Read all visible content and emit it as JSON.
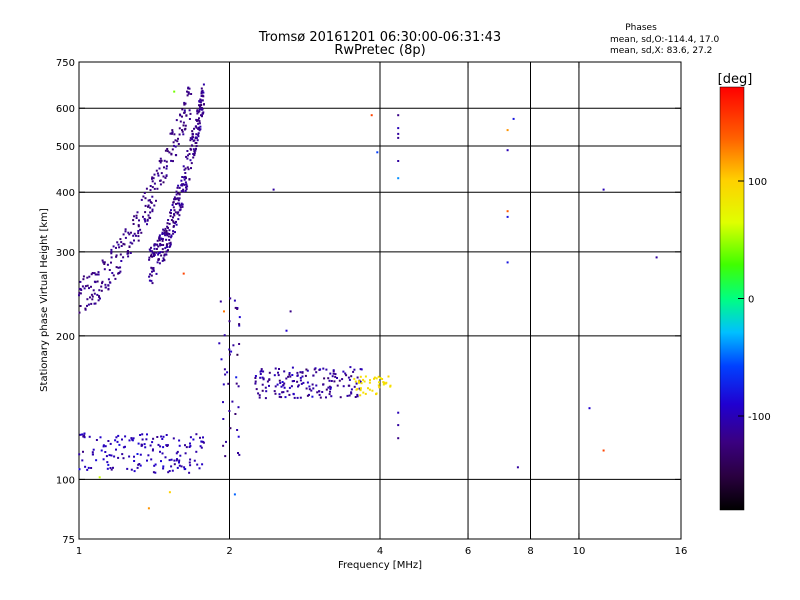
{
  "chart_data": {
    "type": "scatter",
    "title": "Tromsø 20161201 06:30:00-06:31:43",
    "subtitle": "RwPretec (8p)",
    "stats": {
      "heading": "Phases",
      "line1": "mean, sd,O:-114.4, 17.0",
      "line2": "mean, sd,X:  83.6, 27.2"
    },
    "xlabel": "Frequency [MHz]",
    "ylabel": "Stationary phase Virtual Height [km]",
    "x_scale": "log",
    "y_scale": "log",
    "xlim": [
      1,
      16
    ],
    "ylim": [
      75,
      750
    ],
    "x_ticks": [
      1,
      2,
      4,
      6,
      8,
      10,
      16
    ],
    "x_tick_labels": [
      "1",
      "2",
      "4",
      "6",
      "8",
      "10",
      "16"
    ],
    "y_ticks": [
      75,
      100,
      200,
      300,
      400,
      500,
      600,
      750
    ],
    "y_tick_labels": [
      "75",
      "100",
      "200",
      "300",
      "400",
      "500",
      "600",
      "750"
    ],
    "grid_x": [
      2,
      4,
      6,
      8,
      10
    ],
    "grid_y": [
      100,
      200,
      300,
      400,
      500,
      600
    ],
    "colorbar": {
      "label": "[deg]",
      "range": [
        -180,
        180
      ],
      "ticks": [
        100,
        0,
        -100
      ],
      "tick_labels": [
        "100",
        "0",
        "-100"
      ]
    },
    "clusters": [
      {
        "name": "E-layer O trace",
        "x_range": [
          1.0,
          1.78
        ],
        "y_range": [
          103,
          125
        ],
        "count": 160,
        "phase_mean": -100,
        "phase_sd": 12
      },
      {
        "name": "F-layer O trace low",
        "x_range": [
          1.0,
          1.68
        ],
        "y_range": [
          245,
          640
        ],
        "count": 260,
        "phase_mean": -120,
        "phase_sd": 8,
        "kind": "curve"
      },
      {
        "name": "F-layer O trace upper",
        "x_range": [
          1.38,
          1.78
        ],
        "y_range": [
          280,
          650
        ],
        "count": 300,
        "phase_mean": -118,
        "phase_sd": 10,
        "kind": "curve"
      },
      {
        "name": "Es trace",
        "x_range": [
          2.25,
          3.7
        ],
        "y_range": [
          148,
          172
        ],
        "count": 170,
        "phase_mean": -110,
        "phase_sd": 14
      },
      {
        "name": "Es yellow",
        "x_range": [
          3.55,
          4.2
        ],
        "y_range": [
          150,
          165
        ],
        "count": 40,
        "phase_mean": 90,
        "phase_sd": 8
      },
      {
        "name": "scatter near 2 MHz",
        "x_range": [
          1.9,
          2.1
        ],
        "y_range": [
          110,
          240
        ],
        "count": 40,
        "phase_mean": -105,
        "phase_sd": 25
      }
    ],
    "points": [
      [
        3.85,
        580,
        150
      ],
      [
        4.35,
        580,
        -120
      ],
      [
        4.35,
        545,
        -100
      ],
      [
        4.35,
        530,
        -110
      ],
      [
        4.35,
        520,
        -115
      ],
      [
        3.95,
        485,
        -60
      ],
      [
        4.35,
        465,
        -110
      ],
      [
        4.35,
        428,
        -40
      ],
      [
        7.4,
        570,
        -80
      ],
      [
        7.2,
        540,
        120
      ],
      [
        7.2,
        490,
        -100
      ],
      [
        7.2,
        365,
        140
      ],
      [
        7.2,
        355,
        -80
      ],
      [
        7.2,
        285,
        -80
      ],
      [
        2.45,
        405,
        -110
      ],
      [
        11.2,
        405,
        -100
      ],
      [
        14.3,
        292,
        -110
      ],
      [
        2.65,
        225,
        -120
      ],
      [
        2.6,
        205,
        -90
      ],
      [
        4.35,
        138,
        -100
      ],
      [
        4.35,
        130,
        -110
      ],
      [
        4.35,
        122,
        -120
      ],
      [
        7.55,
        106,
        -110
      ],
      [
        10.5,
        141,
        -90
      ],
      [
        11.2,
        115,
        150
      ],
      [
        1.62,
        270,
        150
      ],
      [
        1.55,
        650,
        40
      ],
      [
        1.38,
        87,
        120
      ],
      [
        1.52,
        94,
        100
      ],
      [
        1.1,
        101,
        60
      ],
      [
        2.05,
        93,
        -50
      ],
      [
        1.95,
        225,
        130
      ],
      [
        2.05,
        237,
        -100
      ]
    ]
  }
}
